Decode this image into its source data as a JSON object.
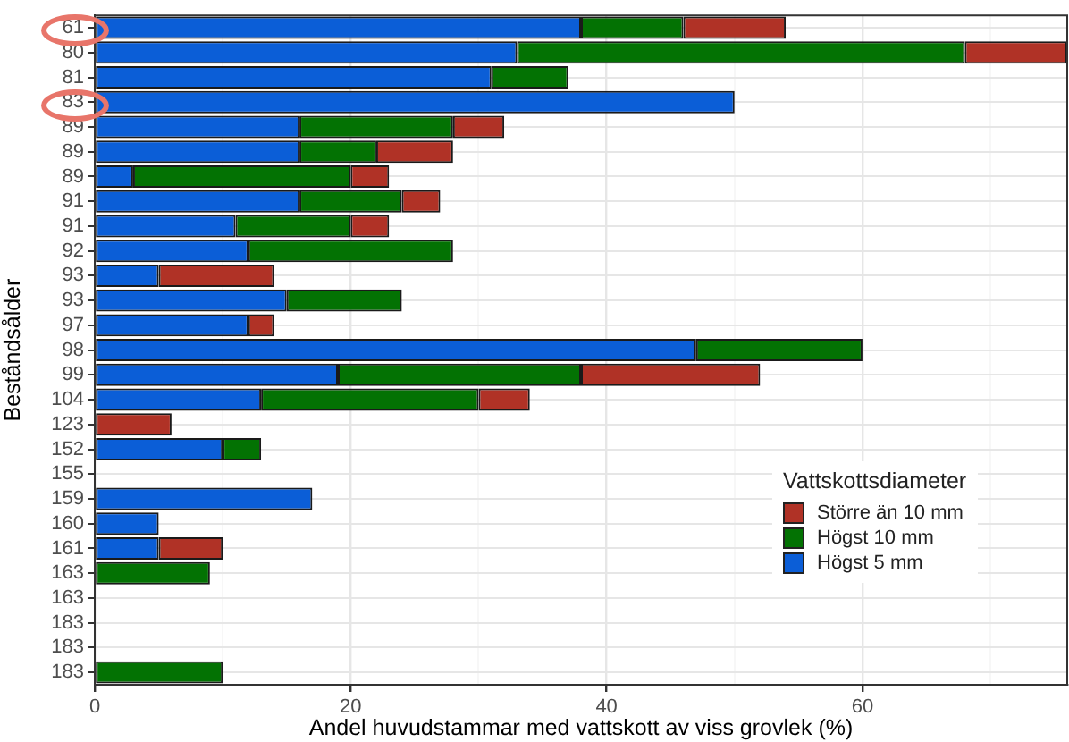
{
  "chart_data": {
    "type": "bar",
    "orientation": "horizontal",
    "stacked": true,
    "xlabel": "Andel huvudstammar med vattskott av viss grovlek (%)",
    "ylabel": "Beståndsålder",
    "legend_title": "Vattskottsdiameter",
    "legend": "right",
    "grid": true,
    "categories": [
      "61",
      "80",
      "81",
      "83",
      "89",
      "89",
      "89",
      "91",
      "91",
      "92",
      "93",
      "93",
      "97",
      "98",
      "99",
      "104",
      "123",
      "152",
      "155",
      "159",
      "160",
      "161",
      "163",
      "163",
      "183",
      "183",
      "183"
    ],
    "series": [
      {
        "name": "Högst 5 mm",
        "color": "#0b5ed7",
        "values": [
          38,
          33,
          31,
          50,
          16,
          16,
          3,
          16,
          11,
          12,
          5,
          15,
          12,
          47,
          19,
          13,
          0,
          10,
          0,
          17,
          5,
          5,
          0,
          0,
          0,
          0,
          0
        ]
      },
      {
        "name": "Högst 10 mm",
        "color": "#037203",
        "values": [
          8,
          35,
          6,
          0,
          12,
          6,
          17,
          8,
          9,
          16,
          0,
          9,
          0,
          13,
          19,
          17,
          0,
          3,
          0,
          0,
          0,
          0,
          9,
          0,
          0,
          0,
          10
        ]
      },
      {
        "name": "Större än 10 mm",
        "color": "#b03226",
        "values": [
          8,
          8,
          0,
          0,
          4,
          6,
          3,
          3,
          3,
          0,
          9,
          0,
          2,
          0,
          14,
          4,
          6,
          0,
          0,
          0,
          0,
          5,
          0,
          0,
          0,
          0,
          0
        ]
      }
    ],
    "xlim": [
      0,
      76
    ],
    "xticks": [
      0,
      {
        "value": 10,
        "label": null
      },
      20,
      {
        "value": 30,
        "label": null
      },
      40,
      {
        "value": 50,
        "label": null
      },
      60,
      {
        "value": 70,
        "label": null
      }
    ]
  }
}
